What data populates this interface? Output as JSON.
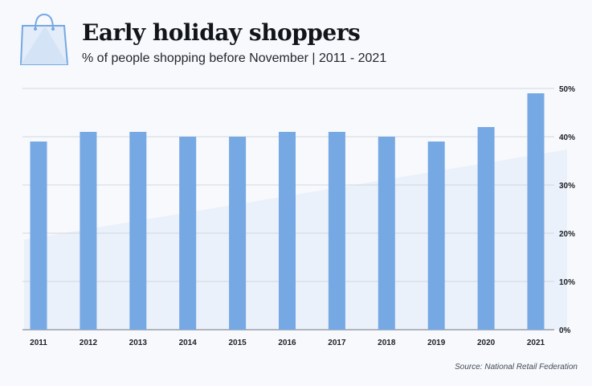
{
  "header": {
    "title": "Early holiday shoppers",
    "subtitle": "% of people shopping before November  |  2011 - 2021",
    "icon": "shopping-bag-icon"
  },
  "source": "Source: National Retail Federation",
  "colors": {
    "bar": "#76a8e3",
    "grid": "#d3d6dc",
    "axis": "#8a8f98",
    "background_shape": "#eaf1fa"
  },
  "chart_data": {
    "type": "bar",
    "categories": [
      "2011",
      "2012",
      "2013",
      "2014",
      "2015",
      "2016",
      "2017",
      "2018",
      "2019",
      "2020",
      "2021"
    ],
    "values": [
      39,
      41,
      41,
      40,
      40,
      41,
      41,
      40,
      39,
      42,
      49
    ],
    "ylim": [
      0,
      50
    ],
    "yticks": [
      0,
      10,
      20,
      30,
      40,
      50
    ],
    "ytick_labels": [
      "0%",
      "10%",
      "20%",
      "30%",
      "40%",
      "50%"
    ],
    "y_axis_position": "right",
    "grid": true,
    "xlabel": "",
    "ylabel": ""
  }
}
